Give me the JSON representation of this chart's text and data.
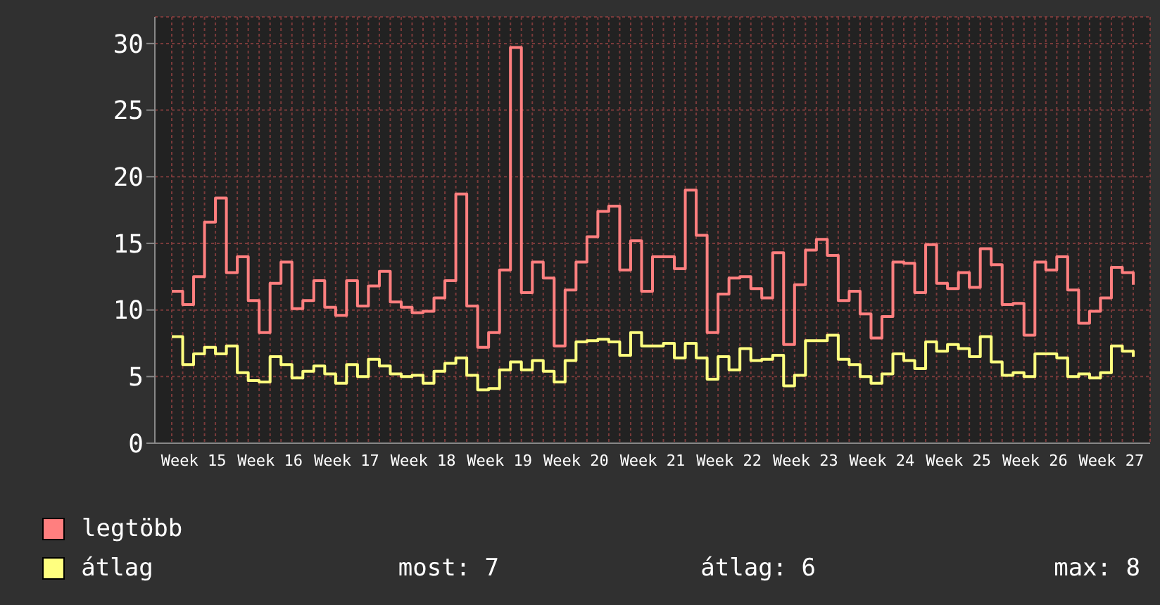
{
  "chart_data": {
    "type": "step",
    "categories": [
      null,
      null,
      "Week 15",
      null,
      null,
      null,
      null,
      null,
      null,
      "Week 16",
      null,
      null,
      null,
      null,
      null,
      null,
      "Week 17",
      null,
      null,
      null,
      null,
      null,
      null,
      "Week 18",
      null,
      null,
      null,
      null,
      null,
      null,
      "Week 19",
      null,
      null,
      null,
      null,
      null,
      null,
      "Week 20",
      null,
      null,
      null,
      null,
      null,
      null,
      "Week 21",
      null,
      null,
      null,
      null,
      null,
      null,
      "Week 22",
      null,
      null,
      null,
      null,
      null,
      null,
      "Week 23",
      null,
      null,
      null,
      null,
      null,
      null,
      "Week 24",
      null,
      null,
      null,
      null,
      null,
      null,
      "Week 25",
      null,
      null,
      null,
      null,
      null,
      null,
      "Week 26",
      null,
      null,
      null,
      null,
      null,
      null,
      "Week 27",
      null,
      null
    ],
    "series": [
      {
        "name": "legtöbb",
        "color": "#ff7f7f",
        "values": [
          11.4,
          10.4,
          12.5,
          16.6,
          18.4,
          12.8,
          14.0,
          10.7,
          8.3,
          12.0,
          13.6,
          10.1,
          10.7,
          12.2,
          10.2,
          9.6,
          12.2,
          10.3,
          11.8,
          12.9,
          10.6,
          10.2,
          9.8,
          9.9,
          10.9,
          12.2,
          18.7,
          10.3,
          7.2,
          8.3,
          13.0,
          29.7,
          11.3,
          13.6,
          12.4,
          7.3,
          11.5,
          13.6,
          15.5,
          17.4,
          17.8,
          13.0,
          15.2,
          11.4,
          14.0,
          14.0,
          13.1,
          19.0,
          15.6,
          8.3,
          11.2,
          12.4,
          12.5,
          11.6,
          10.9,
          14.3,
          7.4,
          11.9,
          14.5,
          15.3,
          14.1,
          10.7,
          11.4,
          9.7,
          7.9,
          9.5,
          13.6,
          13.5,
          11.3,
          14.9,
          12.0,
          11.6,
          12.8,
          11.7,
          14.6,
          13.4,
          10.4,
          10.5,
          8.1,
          13.6,
          13.0,
          14.0,
          11.5,
          9.0,
          9.9,
          10.9,
          13.2,
          12.8,
          11.9
        ]
      },
      {
        "name": "átlag",
        "color": "#ffff7f",
        "values": [
          8.0,
          5.9,
          6.7,
          7.2,
          6.7,
          7.3,
          5.3,
          4.7,
          4.6,
          6.5,
          5.9,
          4.9,
          5.4,
          5.8,
          5.2,
          4.5,
          5.9,
          5.0,
          6.3,
          5.8,
          5.2,
          5.0,
          5.1,
          4.5,
          5.4,
          6.0,
          6.4,
          5.1,
          4.0,
          4.1,
          5.5,
          6.1,
          5.5,
          6.2,
          5.4,
          4.6,
          6.2,
          7.6,
          7.7,
          7.8,
          7.6,
          6.6,
          8.3,
          7.3,
          7.3,
          7.5,
          6.4,
          7.5,
          6.4,
          4.8,
          6.5,
          5.5,
          7.1,
          6.2,
          6.3,
          6.6,
          4.3,
          5.1,
          7.7,
          7.7,
          8.1,
          6.3,
          5.9,
          5.0,
          4.5,
          5.2,
          6.7,
          6.2,
          5.6,
          7.6,
          6.9,
          7.4,
          7.1,
          6.5,
          8.0,
          6.1,
          5.1,
          5.3,
          5.0,
          6.7,
          6.7,
          6.4,
          5.0,
          5.2,
          4.9,
          5.3,
          7.3,
          6.9,
          6.5
        ]
      }
    ],
    "ylim": [
      0,
      32
    ],
    "yticks": [
      0,
      5,
      10,
      15,
      20,
      25,
      30
    ],
    "grid": true,
    "legend": "bottom left",
    "annotations": [
      "most: 7",
      "átlag: 6",
      "max: 8"
    ]
  }
}
